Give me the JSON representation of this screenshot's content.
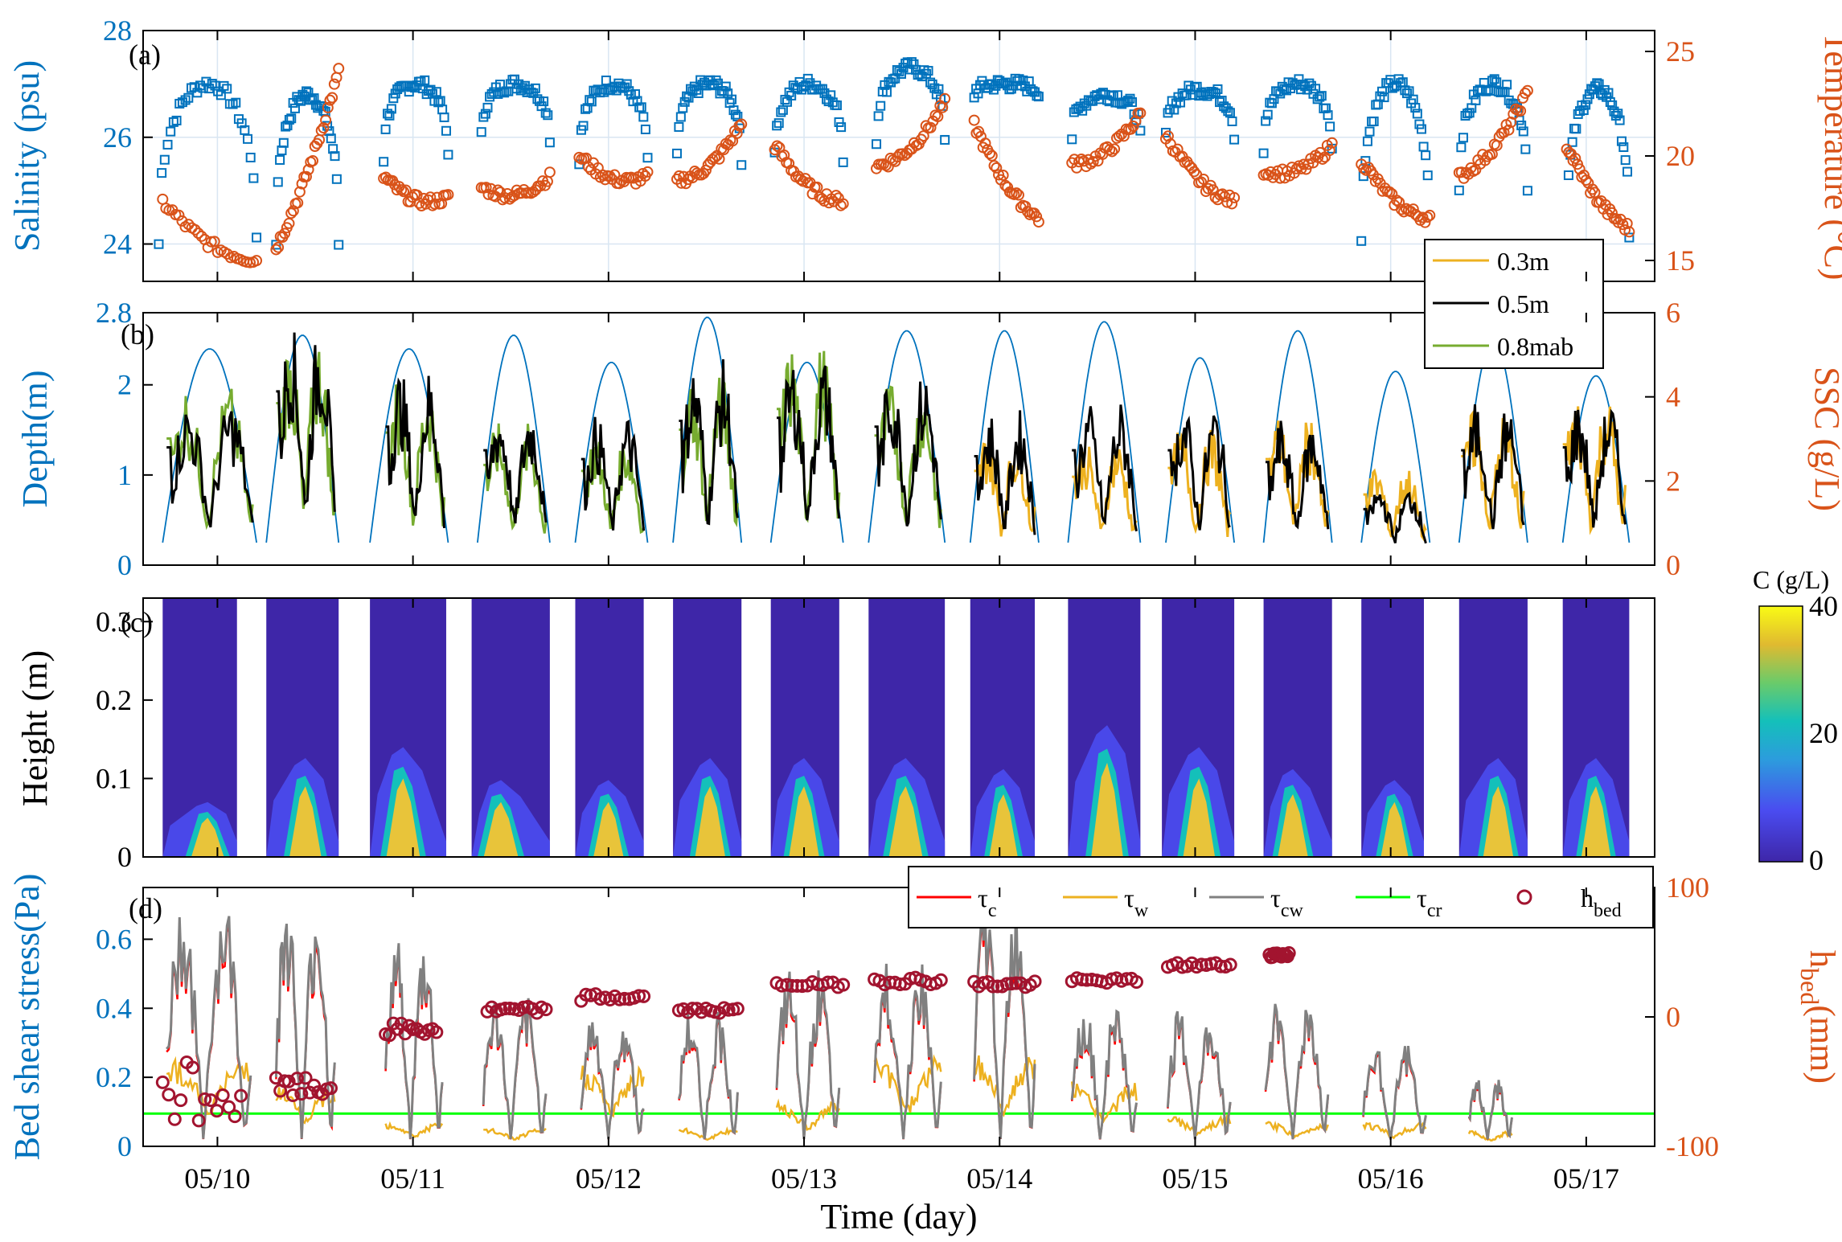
{
  "figure": {
    "xlabel": "Time (day)",
    "x_ticks": [
      "05/10",
      "05/11",
      "05/12",
      "05/13",
      "05/14",
      "05/15",
      "05/16",
      "05/17"
    ],
    "colors": {
      "salinity": "#0072BD",
      "temperature": "#D95319",
      "ssc_03": "#EDB120",
      "ssc_05": "#000000",
      "ssc_08": "#77AC30",
      "tau_c": "#FF0000",
      "tau_w": "#EDB120",
      "tau_cw": "#808080",
      "tau_cr": "#00FF00",
      "h_bed": "#A2142F",
      "contour_low": "#3E26A8",
      "contour_high": "#F9FB15"
    }
  },
  "chart_data": [
    {
      "panel": "(a)",
      "type": "scatter",
      "ylabel": "Salinity (psu)",
      "ylim": [
        23.3,
        28
      ],
      "y_ticks": [
        "24",
        "26",
        "28"
      ],
      "y2label": "Temperature (°C)",
      "y2lim": [
        14,
        26
      ],
      "y2_ticks": [
        "15",
        "20",
        "25"
      ],
      "grid": true,
      "series": [
        {
          "name": "Salinity",
          "marker": "square",
          "axis": "left",
          "tides": [
            {
              "t": [
                9.7,
                10.2
              ],
              "peak": 27.0,
              "base": 24.0
            },
            {
              "t": [
                10.3,
                10.62
              ],
              "peak": 26.8,
              "base": 24.0
            },
            {
              "t": [
                10.85,
                11.18
              ],
              "peak": 27.0,
              "base": 25.6
            },
            {
              "t": [
                11.35,
                11.7
              ],
              "peak": 27.0,
              "base": 26.0
            },
            {
              "t": [
                11.85,
                12.2
              ],
              "peak": 27.0,
              "base": 25.5
            },
            {
              "t": [
                12.35,
                12.68
              ],
              "peak": 27.0,
              "base": 25.6
            },
            {
              "t": [
                12.85,
                13.2
              ],
              "peak": 27.0,
              "base": 25.6
            },
            {
              "t": [
                13.37,
                13.72
              ],
              "peak": 27.3,
              "base": 25.9
            },
            {
              "t": [
                13.87,
                14.2
              ],
              "peak": 27.0,
              "base": 26.8
            },
            {
              "t": [
                14.37,
                14.72
              ],
              "peak": 26.8,
              "base": 26.0
            },
            {
              "t": [
                14.85,
                15.2
              ],
              "peak": 26.9,
              "base": 26.0
            },
            {
              "t": [
                15.35,
                15.7
              ],
              "peak": 27.0,
              "base": 25.8
            },
            {
              "t": [
                15.85,
                16.2
              ],
              "peak": 27.0,
              "base": 24.0
            },
            {
              "t": [
                16.35,
                16.7
              ],
              "peak": 27.0,
              "base": 25.0
            },
            {
              "t": [
                16.9,
                17.22
              ],
              "peak": 26.9,
              "base": 24.0
            }
          ]
        },
        {
          "name": "Temperature",
          "marker": "circle",
          "axis": "right",
          "tides": [
            {
              "t": [
                9.72,
                10.2
              ],
              "start": 17.8,
              "end": 15.0
            },
            {
              "t": [
                10.3,
                10.62
              ],
              "start": 15.6,
              "end": 24.0
            },
            {
              "t": [
                10.85,
                11.18
              ],
              "start": 19.0,
              "end": 18.0
            },
            {
              "t": [
                11.35,
                11.7
              ],
              "start": 18.5,
              "end": 19.0
            },
            {
              "t": [
                11.85,
                12.2
              ],
              "start": 20.0,
              "end": 19.0
            },
            {
              "t": [
                12.35,
                12.68
              ],
              "start": 18.8,
              "end": 21.5
            },
            {
              "t": [
                12.85,
                13.2
              ],
              "start": 20.5,
              "end": 17.8
            },
            {
              "t": [
                13.37,
                13.72
              ],
              "start": 19.5,
              "end": 22.5
            },
            {
              "t": [
                13.87,
                14.2
              ],
              "start": 21.5,
              "end": 17.0
            },
            {
              "t": [
                14.37,
                14.72
              ],
              "start": 19.6,
              "end": 22.0
            },
            {
              "t": [
                14.85,
                15.2
              ],
              "start": 21.0,
              "end": 17.8
            },
            {
              "t": [
                15.35,
                15.7
              ],
              "start": 19.3,
              "end": 20.5
            },
            {
              "t": [
                15.85,
                16.2
              ],
              "start": 19.8,
              "end": 17.0
            },
            {
              "t": [
                16.35,
                16.7
              ],
              "start": 19.0,
              "end": 23.0
            },
            {
              "t": [
                16.9,
                17.22
              ],
              "start": 20.5,
              "end": 16.5
            }
          ]
        }
      ]
    },
    {
      "panel": "(b)",
      "type": "line",
      "ylabel": "Depth(m)",
      "ylim": [
        0,
        2.8
      ],
      "y_ticks": [
        "0",
        "1",
        "2",
        "2.8"
      ],
      "y2label": "SSC (g/L)",
      "y2lim": [
        0,
        6
      ],
      "y2_ticks": [
        "0",
        "2",
        "4",
        "6"
      ],
      "legend": {
        "position": "top-right",
        "entries": [
          "0.3m",
          "0.5m",
          "0.8mab"
        ]
      },
      "depth_tides": [
        {
          "t": [
            9.72,
            10.2
          ],
          "peak": 2.4
        },
        {
          "t": [
            10.25,
            10.62
          ],
          "peak": 2.55
        },
        {
          "t": [
            10.78,
            11.18
          ],
          "peak": 2.4
        },
        {
          "t": [
            11.33,
            11.7
          ],
          "peak": 2.55
        },
        {
          "t": [
            11.83,
            12.2
          ],
          "peak": 2.25
        },
        {
          "t": [
            12.33,
            12.68
          ],
          "peak": 2.75
        },
        {
          "t": [
            12.83,
            13.2
          ],
          "peak": 2.25
        },
        {
          "t": [
            13.33,
            13.72
          ],
          "peak": 2.6
        },
        {
          "t": [
            13.85,
            14.2
          ],
          "peak": 2.6
        },
        {
          "t": [
            14.35,
            14.72
          ],
          "peak": 2.7
        },
        {
          "t": [
            14.85,
            15.2
          ],
          "peak": 2.3
        },
        {
          "t": [
            15.35,
            15.7
          ],
          "peak": 2.6
        },
        {
          "t": [
            15.85,
            16.2
          ],
          "peak": 2.15
        },
        {
          "t": [
            16.35,
            16.7
          ],
          "peak": 2.5
        },
        {
          "t": [
            16.88,
            17.22
          ],
          "peak": 2.1
        }
      ],
      "ssc_bursts": [
        {
          "t": [
            9.74,
            10.18
          ],
          "s05": 4.0,
          "s08": 4.3,
          "s03": 0
        },
        {
          "t": [
            10.3,
            10.6
          ],
          "s05": 5.9,
          "s08": 5.5,
          "s03": 0
        },
        {
          "t": [
            10.86,
            11.16
          ],
          "s05": 4.7,
          "s08": 4.5,
          "s03": 0
        },
        {
          "t": [
            11.36,
            11.68
          ],
          "s05": 3.9,
          "s08": 3.4,
          "s03": 0
        },
        {
          "t": [
            11.86,
            12.18
          ],
          "s05": 3.6,
          "s08": 3.2,
          "s03": 0
        },
        {
          "t": [
            12.36,
            12.66
          ],
          "s05": 4.9,
          "s08": 4.6,
          "s03": 0
        },
        {
          "t": [
            12.86,
            13.18
          ],
          "s05": 5.0,
          "s08": 5.3,
          "s03": 0
        },
        {
          "t": [
            13.36,
            13.7
          ],
          "s05": 4.7,
          "s08": 4.4,
          "s03": 0
        },
        {
          "t": [
            13.87,
            14.18
          ],
          "s05": 3.7,
          "s08": 0,
          "s03": 3.2
        },
        {
          "t": [
            14.37,
            14.7
          ],
          "s05": 3.9,
          "s08": 0,
          "s03": 3.0
        },
        {
          "t": [
            14.86,
            15.18
          ],
          "s05": 3.9,
          "s08": 0,
          "s03": 3.3
        },
        {
          "t": [
            15.36,
            15.68
          ],
          "s05": 3.5,
          "s08": 0,
          "s03": 3.6
        },
        {
          "t": [
            15.86,
            16.18
          ],
          "s05": 1.9,
          "s08": 0,
          "s03": 2.4
        },
        {
          "t": [
            16.36,
            16.68
          ],
          "s05": 3.9,
          "s08": 0,
          "s03": 3.7
        },
        {
          "t": [
            16.88,
            17.2
          ],
          "s05": 4.0,
          "s08": 0,
          "s03": 4.1
        }
      ]
    },
    {
      "panel": "(c)",
      "type": "heatmap",
      "ylabel": "Height (m)",
      "ylim": [
        0,
        0.33
      ],
      "y_ticks": [
        "0",
        "0.1",
        "0.2",
        "0.3"
      ],
      "colorbar": {
        "label": "C (g/L)",
        "range": [
          0,
          40
        ],
        "ticks": [
          "0",
          "20",
          "40"
        ]
      },
      "blocks": [
        {
          "t": [
            9.72,
            10.1
          ],
          "high_t": 9.95,
          "high_h": 0.05
        },
        {
          "t": [
            10.25,
            10.62
          ],
          "high_t": 10.45,
          "high_h": 0.09
        },
        {
          "t": [
            10.78,
            11.17
          ],
          "high_t": 10.95,
          "high_h": 0.1
        },
        {
          "t": [
            11.3,
            11.7
          ],
          "high_t": 11.45,
          "high_h": 0.07
        },
        {
          "t": [
            11.83,
            12.18
          ],
          "high_t": 12.0,
          "high_h": 0.07
        },
        {
          "t": [
            12.33,
            12.68
          ],
          "high_t": 12.52,
          "high_h": 0.09
        },
        {
          "t": [
            12.83,
            13.18
          ],
          "high_t": 13.0,
          "high_h": 0.09
        },
        {
          "t": [
            13.33,
            13.72
          ],
          "high_t": 13.52,
          "high_h": 0.09
        },
        {
          "t": [
            13.85,
            14.18
          ],
          "high_t": 14.02,
          "high_h": 0.08
        },
        {
          "t": [
            14.35,
            14.72
          ],
          "high_t": 14.55,
          "high_h": 0.12
        },
        {
          "t": [
            14.83,
            15.2
          ],
          "high_t": 15.02,
          "high_h": 0.1
        },
        {
          "t": [
            15.35,
            15.7
          ],
          "high_t": 15.5,
          "high_h": 0.08
        },
        {
          "t": [
            15.85,
            16.17
          ],
          "high_t": 16.02,
          "high_h": 0.07
        },
        {
          "t": [
            16.35,
            16.7
          ],
          "high_t": 16.55,
          "high_h": 0.09
        },
        {
          "t": [
            16.88,
            17.22
          ],
          "high_t": 17.05,
          "high_h": 0.09
        }
      ]
    },
    {
      "panel": "(d)",
      "type": "line",
      "ylabel": "Bed shear stress(Pa)",
      "ylim": [
        0,
        0.75
      ],
      "y_ticks": [
        "0",
        "0.2",
        "0.4",
        "0.6"
      ],
      "y2label": "h",
      "y2label_sub": "bed",
      "y2label_unit": "(mm)",
      "y2lim": [
        -100,
        100
      ],
      "y2_ticks": [
        "-100",
        "0",
        "100"
      ],
      "legend": {
        "position": "top-right",
        "entries": [
          {
            "main": "τ",
            "sub": "c"
          },
          {
            "main": "τ",
            "sub": "w"
          },
          {
            "main": "τ",
            "sub": "cw"
          },
          {
            "main": "τ",
            "sub": "cr"
          },
          {
            "main": "h",
            "sub": "bed"
          }
        ]
      },
      "tau_cr": 0.095,
      "tau_tides": [
        {
          "t": [
            9.74,
            10.17
          ],
          "peak": 0.74,
          "w": 0.3
        },
        {
          "t": [
            10.3,
            10.6
          ],
          "peak": 0.75,
          "w": 0.2
        },
        {
          "t": [
            10.86,
            11.15
          ],
          "peak": 0.62,
          "w": 0.08
        },
        {
          "t": [
            11.36,
            11.68
          ],
          "peak": 0.44,
          "w": 0.06
        },
        {
          "t": [
            11.86,
            12.18
          ],
          "peak": 0.4,
          "w": 0.27
        },
        {
          "t": [
            12.36,
            12.66
          ],
          "peak": 0.4,
          "w": 0.06
        },
        {
          "t": [
            12.86,
            13.18
          ],
          "peak": 0.52,
          "w": 0.15
        },
        {
          "t": [
            13.36,
            13.7
          ],
          "peak": 0.55,
          "w": 0.3
        },
        {
          "t": [
            13.87,
            14.18
          ],
          "peak": 0.75,
          "w": 0.3
        },
        {
          "t": [
            14.37,
            14.7
          ],
          "peak": 0.43,
          "w": 0.21
        },
        {
          "t": [
            14.86,
            15.18
          ],
          "peak": 0.4,
          "w": 0.1
        },
        {
          "t": [
            15.36,
            15.68
          ],
          "peak": 0.45,
          "w": 0.08
        },
        {
          "t": [
            15.86,
            16.18
          ],
          "peak": 0.3,
          "w": 0.08
        },
        {
          "t": [
            16.4,
            16.62
          ],
          "peak": 0.2,
          "w": 0.05
        }
      ],
      "h_bed": [
        {
          "t": [
            9.72,
            10.12
          ],
          "level": -60,
          "spread": 30
        },
        {
          "t": [
            10.3,
            10.58
          ],
          "level": -55,
          "spread": 8
        },
        {
          "t": [
            10.86,
            11.12
          ],
          "level": -10,
          "spread": 5
        },
        {
          "t": [
            11.38,
            11.68
          ],
          "level": 5,
          "spread": 3
        },
        {
          "t": [
            11.86,
            12.18
          ],
          "level": 15,
          "spread": 3
        },
        {
          "t": [
            12.36,
            12.66
          ],
          "level": 5,
          "spread": 2
        },
        {
          "t": [
            12.86,
            13.2
          ],
          "level": 25,
          "spread": 2
        },
        {
          "t": [
            13.36,
            13.7
          ],
          "level": 28,
          "spread": 3
        },
        {
          "t": [
            13.87,
            14.18
          ],
          "level": 25,
          "spread": 3
        },
        {
          "t": [
            14.37,
            14.7
          ],
          "level": 28,
          "spread": 2
        },
        {
          "t": [
            14.86,
            15.18
          ],
          "level": 40,
          "spread": 2
        },
        {
          "t": [
            15.38,
            15.48
          ],
          "level": 48,
          "spread": 2
        }
      ]
    }
  ]
}
